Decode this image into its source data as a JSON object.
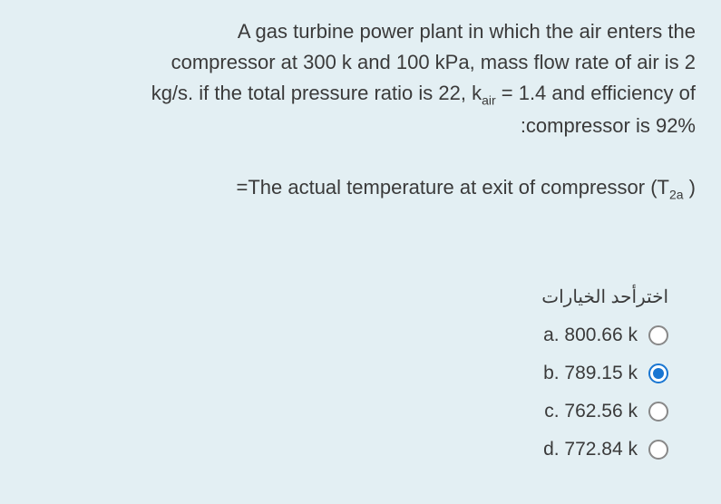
{
  "question": {
    "line1": "A gas turbine power plant in which the air enters the",
    "line2": "compressor at 300 k and 100 kPa, mass flow rate of air is 2",
    "line3_pre": "kg/s. if the total pressure ratio is 22, k",
    "line3_sub": "air",
    "line3_post": " = 1.4  and efficiency of",
    "line4": ":compressor is 92%",
    "line5_pre": "=The actual temperature at exit of compressor (T",
    "line5_sub": "2a",
    "line5_post": " )"
  },
  "options_label": "اخترأحد الخيارات",
  "options": [
    {
      "letter": "a.",
      "value": "800.66 k",
      "selected": false
    },
    {
      "letter": "b.",
      "value": "789.15 k",
      "selected": true
    },
    {
      "letter": "c.",
      "value": "762.56 k",
      "selected": false
    },
    {
      "letter": "d.",
      "value": "772.84 k",
      "selected": false
    }
  ],
  "colors": {
    "background": "#e3eff3",
    "text": "#3a3a3a",
    "radio_border": "#888888",
    "radio_selected": "#1976d2"
  },
  "typography": {
    "question_fontsize": 22,
    "option_fontsize": 21,
    "label_fontsize": 20
  }
}
